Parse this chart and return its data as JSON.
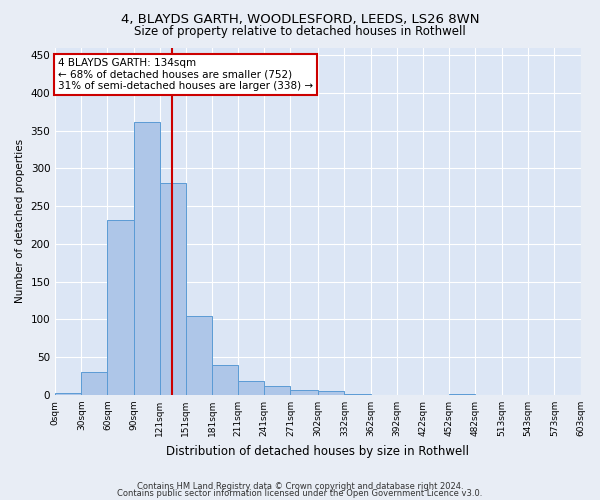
{
  "title1": "4, BLAYDS GARTH, WOODLESFORD, LEEDS, LS26 8WN",
  "title2": "Size of property relative to detached houses in Rothwell",
  "xlabel": "Distribution of detached houses by size in Rothwell",
  "ylabel": "Number of detached properties",
  "bin_edges": [
    0,
    30,
    60,
    90,
    120,
    150,
    180,
    210,
    240,
    270,
    302,
    332,
    362,
    392,
    422,
    452,
    482,
    513,
    543,
    573,
    603
  ],
  "bar_heights": [
    2,
    30,
    232,
    362,
    280,
    105,
    40,
    18,
    12,
    6,
    5,
    1,
    0,
    0,
    0,
    1,
    0,
    0,
    0,
    0
  ],
  "bar_color": "#aec6e8",
  "bar_edge_color": "#5b9bd5",
  "vline_x": 134,
  "vline_color": "#cc0000",
  "annot_line1": "4 BLAYDS GARTH: 134sqm",
  "annot_line2": "← 68% of detached houses are smaller (752)",
  "annot_line3": "31% of semi-detached houses are larger (338) →",
  "annotation_box_color": "#ffffff",
  "annotation_box_edge": "#cc0000",
  "ylim": [
    0,
    460
  ],
  "yticks": [
    0,
    50,
    100,
    150,
    200,
    250,
    300,
    350,
    400,
    450
  ],
  "tick_labels": [
    "0sqm",
    "30sqm",
    "60sqm",
    "90sqm",
    "121sqm",
    "151sqm",
    "181sqm",
    "211sqm",
    "241sqm",
    "271sqm",
    "302sqm",
    "332sqm",
    "362sqm",
    "392sqm",
    "422sqm",
    "452sqm",
    "482sqm",
    "513sqm",
    "543sqm",
    "573sqm",
    "603sqm"
  ],
  "footer1": "Contains HM Land Registry data © Crown copyright and database right 2024.",
  "footer2": "Contains public sector information licensed under the Open Government Licence v3.0.",
  "bg_color": "#e8edf5",
  "plot_bg_color": "#dce6f5",
  "title1_fontsize": 9.5,
  "title2_fontsize": 8.5,
  "xlabel_fontsize": 8.5,
  "ylabel_fontsize": 7.5,
  "xtick_fontsize": 6.5,
  "ytick_fontsize": 7.5,
  "annot_fontsize": 7.5,
  "footer_fontsize": 6.0
}
